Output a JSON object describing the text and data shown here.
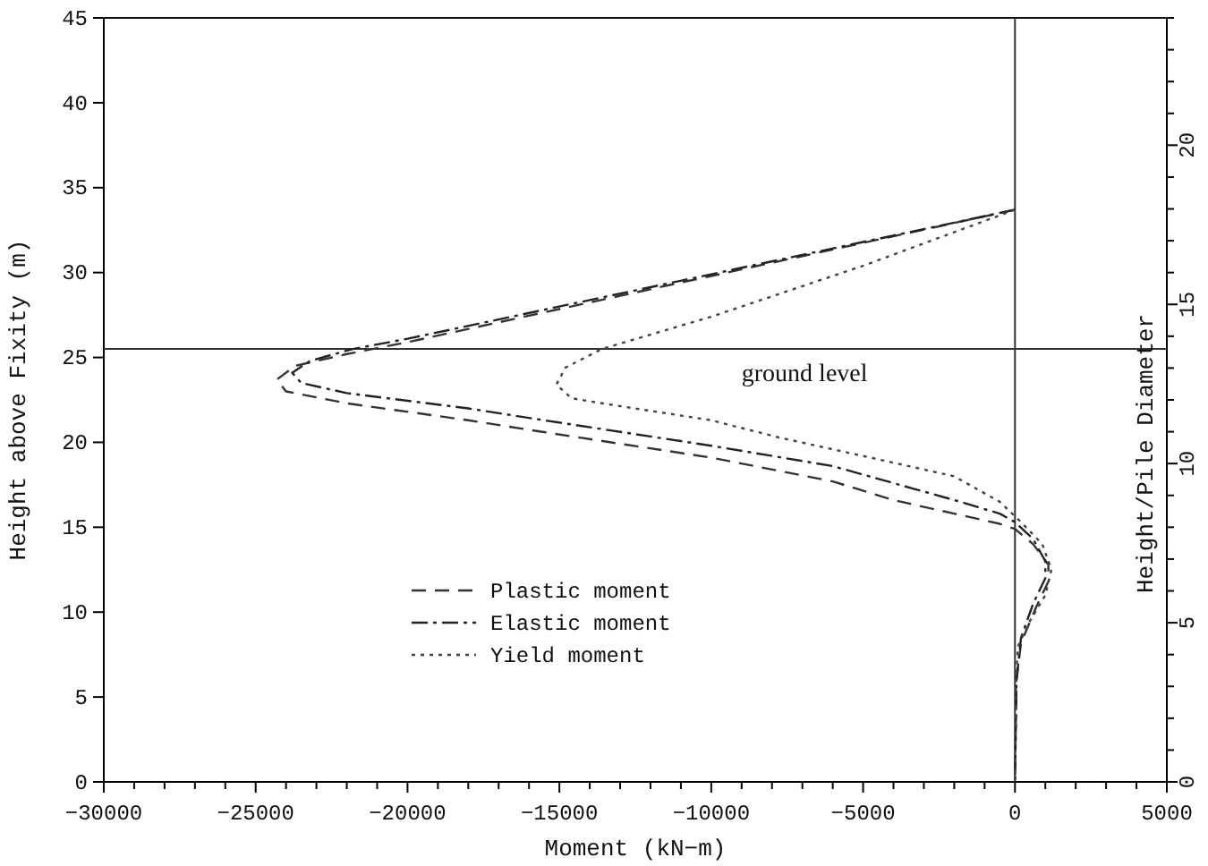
{
  "chart_data": {
    "type": "line",
    "xlabel": "Moment (kN−m)",
    "ylabel": "Height above Fixity (m)",
    "y2label": "Height/Pile Diameter",
    "xlim": [
      -30000,
      5000
    ],
    "xticks": [
      -30000,
      {
        "value": -29000,
        "label": null
      },
      {
        "value": -28000,
        "label": null
      },
      {
        "value": -27000,
        "label": null
      },
      {
        "value": -26000,
        "label": null
      },
      -25000,
      {
        "value": -24000,
        "label": null
      },
      {
        "value": -23000,
        "label": null
      },
      {
        "value": -22000,
        "label": null
      },
      {
        "value": -21000,
        "label": null
      },
      -20000,
      {
        "value": -19000,
        "label": null
      },
      {
        "value": -18000,
        "label": null
      },
      {
        "value": -17000,
        "label": null
      },
      {
        "value": -16000,
        "label": null
      },
      -15000,
      {
        "value": -14000,
        "label": null
      },
      {
        "value": -13000,
        "label": null
      },
      {
        "value": -12000,
        "label": null
      },
      {
        "value": -11000,
        "label": null
      },
      -10000,
      {
        "value": -9000,
        "label": null
      },
      {
        "value": -8000,
        "label": null
      },
      {
        "value": -7000,
        "label": null
      },
      {
        "value": -6000,
        "label": null
      },
      -5000,
      {
        "value": -4000,
        "label": null
      },
      {
        "value": -3000,
        "label": null
      },
      {
        "value": -2000,
        "label": null
      },
      {
        "value": -1000,
        "label": null
      },
      0,
      {
        "value": 1000,
        "label": null
      },
      {
        "value": 2000,
        "label": null
      },
      {
        "value": 3000,
        "label": null
      },
      {
        "value": 4000,
        "label": null
      },
      5000
    ],
    "ylim": [
      0,
      45
    ],
    "yticks": [
      0,
      5,
      10,
      15,
      20,
      25,
      30,
      35,
      40,
      45
    ],
    "y2lim": [
      0,
      24
    ],
    "y2ticks": [
      0,
      {
        "value": 1,
        "label": null
      },
      {
        "value": 2,
        "label": null
      },
      {
        "value": 3,
        "label": null
      },
      {
        "value": 4,
        "label": null
      },
      5,
      {
        "value": 6,
        "label": null
      },
      {
        "value": 7,
        "label": null
      },
      {
        "value": 8,
        "label": null
      },
      {
        "value": 9,
        "label": null
      },
      10,
      {
        "value": 11,
        "label": null
      },
      {
        "value": 12,
        "label": null
      },
      {
        "value": 13,
        "label": null
      },
      {
        "value": 14,
        "label": null
      },
      15,
      {
        "value": 16,
        "label": null
      },
      {
        "value": 17,
        "label": null
      },
      {
        "value": 18,
        "label": null
      },
      {
        "value": 19,
        "label": null
      },
      20,
      {
        "value": 21,
        "label": null
      },
      {
        "value": 22,
        "label": null
      },
      {
        "value": 23,
        "label": null
      },
      {
        "value": 24,
        "label": null
      }
    ],
    "legend": "bottom",
    "grid": false,
    "ref_lines": [
      {
        "axis": "y",
        "value": 25.5,
        "label": "ground level",
        "color": "#333333"
      },
      {
        "axis": "x",
        "value": 0,
        "label": null,
        "color": "#333333"
      }
    ],
    "series": [
      {
        "name": "Plastic moment",
        "color": "#333333",
        "line_style": "dashed",
        "x": [
          0,
          -10000,
          -20000,
          -22000,
          -23700,
          -24300,
          -24000,
          -22000,
          -18000,
          -15500,
          -10000,
          -6000,
          -4000,
          -2000,
          -500,
          0,
          600,
          1100,
          1100,
          700,
          200,
          50,
          0
        ],
        "values": [
          33.7,
          29.8,
          25.9,
          25.2,
          24.5,
          23.7,
          23.0,
          22.3,
          21.3,
          20.6,
          19.1,
          17.7,
          16.6,
          15.8,
          15.2,
          14.9,
          14.0,
          12.8,
          11.8,
          10.3,
          8.2,
          6,
          0
        ]
      },
      {
        "name": "Elastic moment",
        "color": "#222222",
        "line_style": "dashdot",
        "x": [
          0,
          -10000,
          -20000,
          -21800,
          -23200,
          -23800,
          -23500,
          -22000,
          -18000,
          -15500,
          -10000,
          -6000,
          -4000,
          -2000,
          -500,
          0,
          600,
          1000,
          1000,
          600,
          200,
          50,
          0
        ],
        "values": [
          33.7,
          29.9,
          26.1,
          25.5,
          24.8,
          24.1,
          23.5,
          22.9,
          22.0,
          21.3,
          19.8,
          18.6,
          17.6,
          16.6,
          15.8,
          15.3,
          14.3,
          13.0,
          12.0,
          10.5,
          8.5,
          6,
          0
        ]
      },
      {
        "name": "Yield moment",
        "color": "#444444",
        "line_style": "dotted",
        "x": [
          0,
          -5000,
          -10000,
          -13600,
          -14800,
          -15100,
          -14600,
          -13600,
          -10000,
          -7800,
          -4000,
          -2000,
          -500,
          200,
          900,
          1200,
          1000,
          500,
          100,
          30,
          0
        ],
        "values": [
          33.7,
          30.4,
          27.4,
          25.5,
          24.4,
          23.4,
          22.6,
          22.3,
          21.3,
          20.3,
          18.8,
          18.0,
          16.5,
          15.3,
          14.0,
          12.5,
          11.0,
          9.5,
          8.0,
          6,
          0
        ]
      }
    ]
  }
}
